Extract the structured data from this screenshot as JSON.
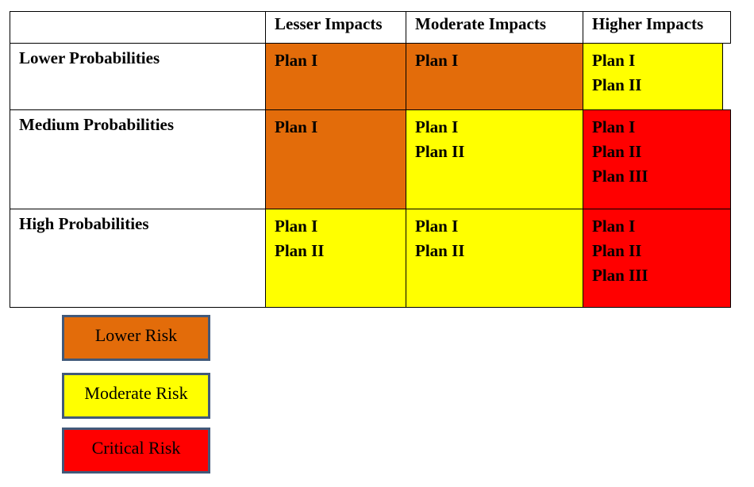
{
  "matrix": {
    "column_headers": [
      "",
      "Lesser Impacts",
      "Moderate Impacts",
      "Higher Impacts"
    ],
    "rows": [
      {
        "label": "Lower Probabilities",
        "cells": [
          {
            "risk": "lower",
            "plans": [
              "Plan I"
            ]
          },
          {
            "risk": "lower",
            "plans": [
              "Plan I"
            ]
          },
          {
            "risk": "moderate",
            "plans": [
              "Plan I",
              "Plan II"
            ]
          }
        ]
      },
      {
        "label": "Medium Probabilities",
        "cells": [
          {
            "risk": "lower",
            "plans": [
              "Plan I"
            ]
          },
          {
            "risk": "moderate",
            "plans": [
              "Plan I",
              "Plan II"
            ]
          },
          {
            "risk": "critical",
            "plans": [
              "Plan I",
              "Plan II",
              "Plan III"
            ]
          }
        ]
      },
      {
        "label": "High Probabilities",
        "cells": [
          {
            "risk": "moderate",
            "plans": [
              "Plan I",
              "Plan II"
            ]
          },
          {
            "risk": "moderate",
            "plans": [
              "Plan I",
              "Plan II"
            ]
          },
          {
            "risk": "critical",
            "plans": [
              "Plan I",
              "Plan II",
              "Plan III"
            ]
          }
        ]
      }
    ]
  },
  "legend": [
    {
      "label": "Lower Risk",
      "color": "#e36c0a"
    },
    {
      "label": "Moderate Risk",
      "color": "#ffff00"
    },
    {
      "label": "Critical Risk",
      "color": "#ff0000"
    }
  ],
  "colors": {
    "lower": "#e36c0a",
    "moderate": "#ffff00",
    "critical": "#ff0000",
    "legend_border": "#41597a"
  }
}
